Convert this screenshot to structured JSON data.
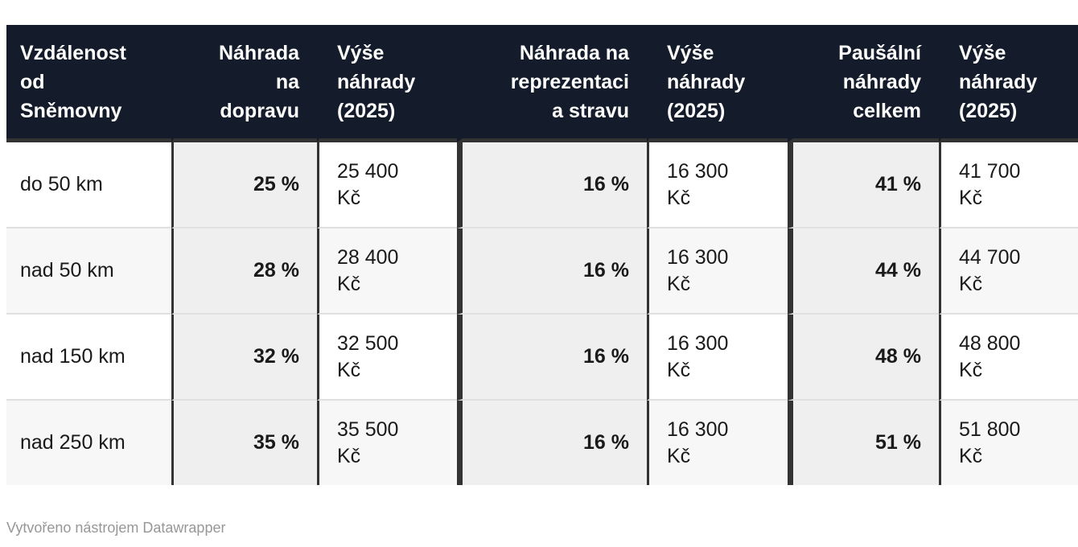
{
  "chart_data": {
    "type": "table",
    "columns": [
      "Vzdálenost od Sněmovny",
      "Náhrada na dopravu",
      "Výše náhrady (2025)",
      "Náhrada na reprezentaci a stravu",
      "Výše náhrady (2025)",
      "Paušální náhrady celkem",
      "Výše náhrady (2025)"
    ],
    "rows": [
      [
        "do 50 km",
        "25 %",
        "25 400 Kč",
        "16 %",
        "16 300 Kč",
        "41 %",
        "41 700 Kč"
      ],
      [
        "nad 50 km",
        "28 %",
        "28 400 Kč",
        "16 %",
        "16 300 Kč",
        "44 %",
        "44 700 Kč"
      ],
      [
        "nad 150 km",
        "32 %",
        "32 500 Kč",
        "16 %",
        "16 300 Kč",
        "48 %",
        "48 800 Kč"
      ],
      [
        "nad 250 km",
        "35 %",
        "35 500 Kč",
        "16 %",
        "16 300 Kč",
        "51 %",
        "51 800 Kč"
      ]
    ],
    "legend_position": "none",
    "grid": "row-and-column-borders"
  },
  "header": {
    "labels": [
      "Vzdálenost\nod\nSněmovny",
      "Náhrada\nna\ndopravu",
      "Výše\nnáhrady\n(2025)",
      "Náhrada na\nreprezentaci\na stravu",
      "Výše\nnáhrady\n(2025)",
      "Paušální\nnáhrady\ncelkem",
      "Výše\nnáhrady\n(2025)"
    ]
  },
  "body": {
    "rows": [
      {
        "cells": [
          "do 50 km",
          "25 %",
          "25 400\nKč",
          "16 %",
          "16 300\nKč",
          "41 %",
          "41 700\nKč"
        ]
      },
      {
        "cells": [
          "nad 50 km",
          "28 %",
          "28 400\nKč",
          "16 %",
          "16 300\nKč",
          "44 %",
          "44 700\nKč"
        ]
      },
      {
        "cells": [
          "nad 150 km",
          "32 %",
          "32 500\nKč",
          "16 %",
          "16 300\nKč",
          "48 %",
          "48 800\nKč"
        ]
      },
      {
        "cells": [
          "nad 250 km",
          "35 %",
          "35 500\nKč",
          "16 %",
          "16 300\nKč",
          "51 %",
          "51 800\nKč"
        ]
      }
    ]
  },
  "footer": {
    "attribution": "Vytvořeno nástrojem Datawrapper"
  },
  "colors": {
    "header_bg": "#141c2b",
    "header_text": "#ffffff",
    "divider_dark": "#333333",
    "row_separator": "#e0e0e0",
    "shaded_column_bg": "#efefef",
    "alt_row_bg": "#f7f7f7",
    "cell_text": "#1a1a1a",
    "attribution_text": "#979797"
  }
}
